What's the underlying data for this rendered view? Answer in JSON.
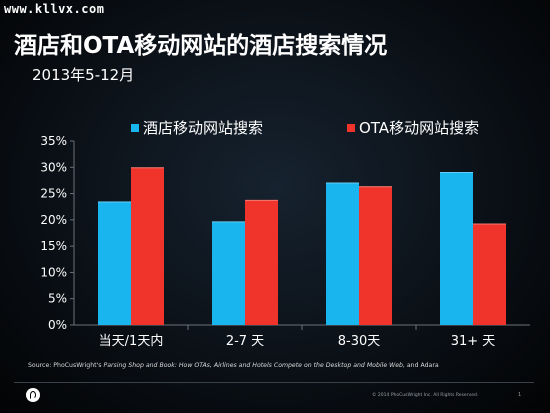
{
  "watermark": "www.kllvx.com",
  "header": {
    "title": "酒店和OTA移动网站的酒店搜索情况",
    "subtitle": "2013年5-12月"
  },
  "colors": {
    "series_hotel": "#18b5ee",
    "series_ota": "#f0342b",
    "axis_text": "#ffffff",
    "gridline": "#2a2f35"
  },
  "chart_data": {
    "type": "bar",
    "categories": [
      "当天/1天内",
      "2-7 天",
      "8-30天",
      "31+ 天"
    ],
    "series": [
      {
        "name": "酒店移动网站搜索",
        "values": [
          23.5,
          19.7,
          27.1,
          29.1
        ]
      },
      {
        "name": "OTA移动网站搜索",
        "values": [
          30.0,
          23.8,
          26.4,
          19.3
        ]
      }
    ],
    "ylim": [
      0,
      35
    ],
    "yticks": [
      "0%",
      "5%",
      "10%",
      "15%",
      "20%",
      "25%",
      "30%",
      "35%"
    ],
    "legend": "top",
    "grid": false
  },
  "source": {
    "prefix": "Source:  PhoCusWright's ",
    "italic": "Parsing Shop and Book: How OTAs, Airlines and Hotels Compete on the Desktop and Mobile Web,",
    "suffix": " and Adara"
  },
  "footer": {
    "copyright": "© 2014 PhoCusWright Inc.  All Rights Reserved.",
    "page": "1"
  }
}
